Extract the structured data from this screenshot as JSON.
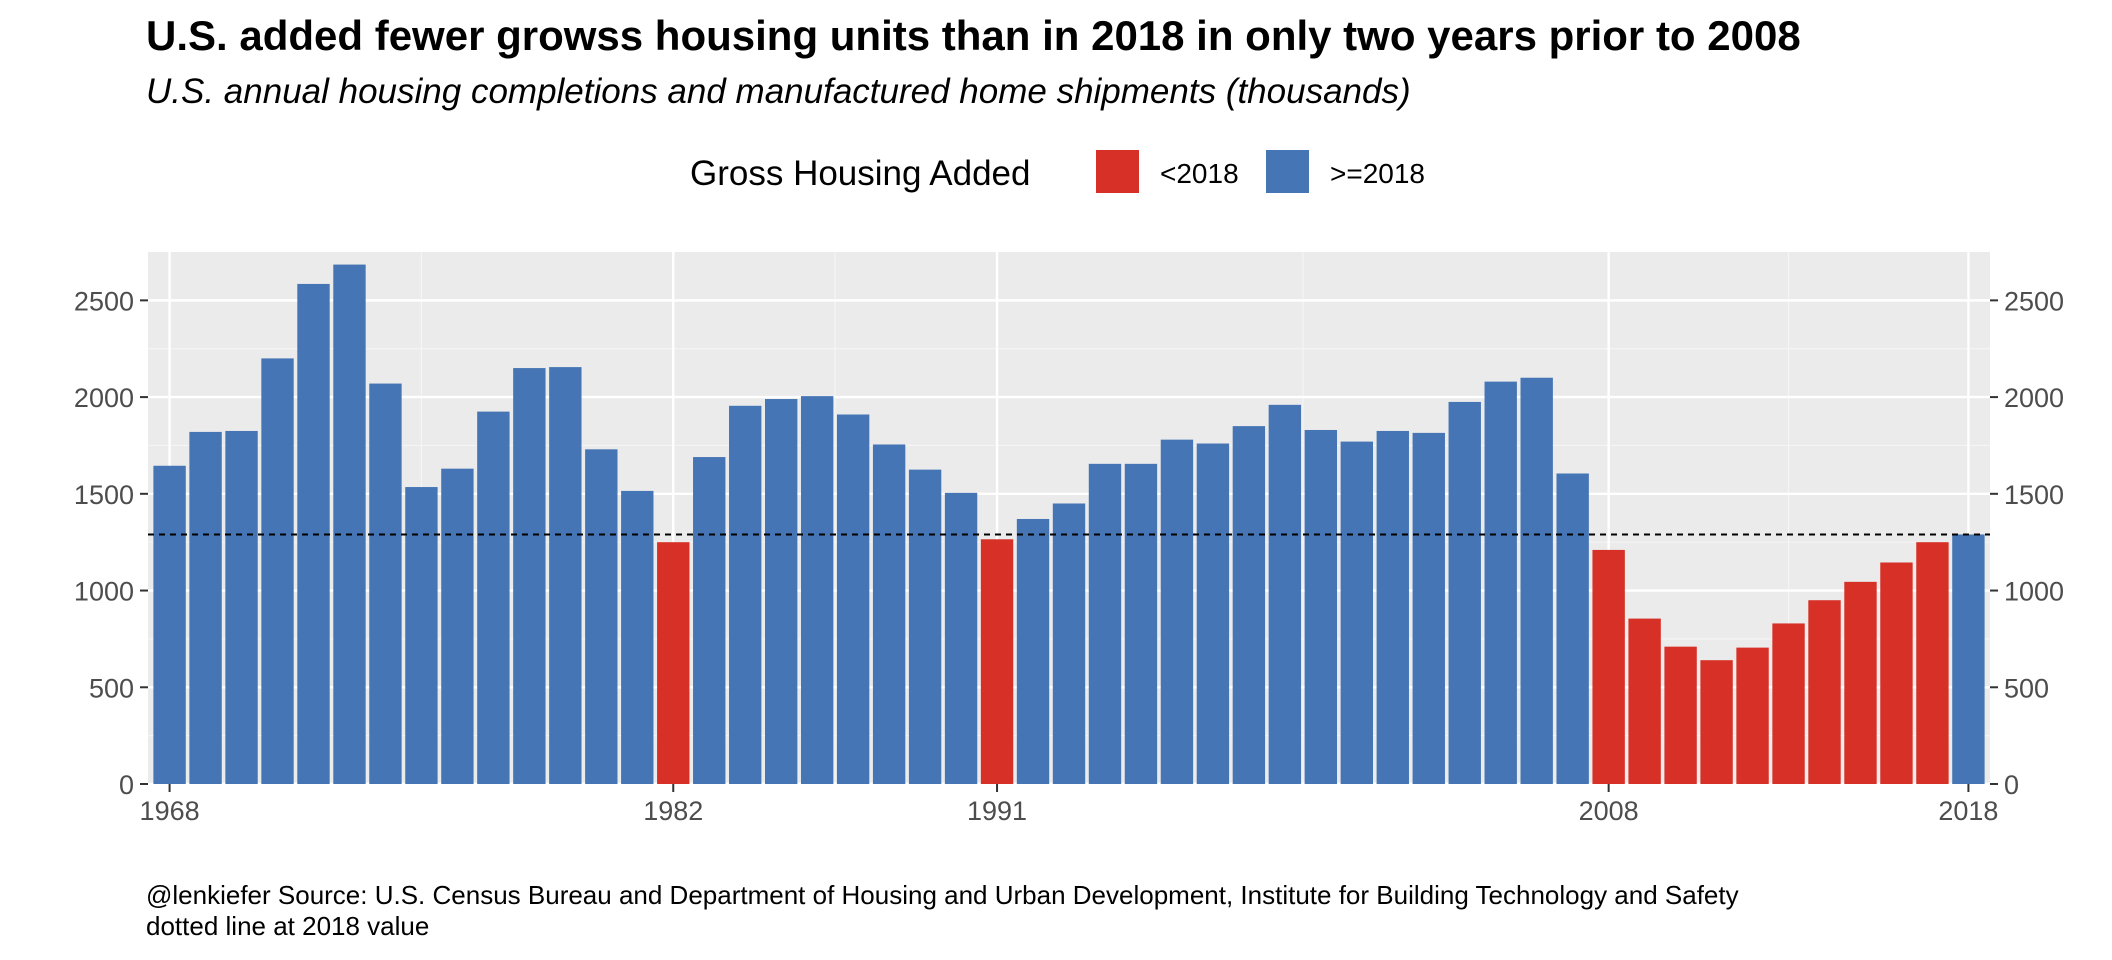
{
  "title": "U.S. added fewer growss housing units than in 2018 in only two years prior to 2008",
  "subtitle": "U.S. annual housing completions and manufactured home shipments (thousands)",
  "legend": {
    "title": "Gross Housing Added",
    "items": [
      {
        "label": "<2018",
        "color": "#D73027"
      },
      {
        "label": ">=2018",
        "color": "#4575B4"
      }
    ]
  },
  "caption": {
    "line1": "@lenkiefer Source: U.S. Census Bureau and Department of Housing and Urban Development, Institute for Building Technology and Safety",
    "line2": "dotted line at 2018 value"
  },
  "chart_data": {
    "type": "bar",
    "x": [
      1968,
      1969,
      1970,
      1971,
      1972,
      1973,
      1974,
      1975,
      1976,
      1977,
      1978,
      1979,
      1980,
      1981,
      1982,
      1983,
      1984,
      1985,
      1986,
      1987,
      1988,
      1989,
      1990,
      1991,
      1992,
      1993,
      1994,
      1995,
      1996,
      1997,
      1998,
      1999,
      2000,
      2001,
      2002,
      2003,
      2004,
      2005,
      2006,
      2007,
      2008,
      2009,
      2010,
      2011,
      2012,
      2013,
      2014,
      2015,
      2016,
      2017,
      2018
    ],
    "values": [
      1645,
      1820,
      1825,
      2200,
      2585,
      2685,
      2070,
      1535,
      1630,
      1925,
      2150,
      2155,
      1730,
      1515,
      1250,
      1690,
      1955,
      1990,
      2005,
      1910,
      1755,
      1625,
      1505,
      1265,
      1370,
      1450,
      1655,
      1655,
      1780,
      1760,
      1850,
      1960,
      1830,
      1770,
      1825,
      1815,
      1975,
      2080,
      2100,
      1605,
      1210,
      855,
      710,
      640,
      705,
      830,
      950,
      1045,
      1145,
      1250,
      1290
    ],
    "categories_colored": [
      "<2018",
      ">=2018"
    ],
    "bar_group": [
      ">=2018",
      ">=2018",
      ">=2018",
      ">=2018",
      ">=2018",
      ">=2018",
      ">=2018",
      ">=2018",
      ">=2018",
      ">=2018",
      ">=2018",
      ">=2018",
      ">=2018",
      ">=2018",
      "<2018",
      ">=2018",
      ">=2018",
      ">=2018",
      ">=2018",
      ">=2018",
      ">=2018",
      ">=2018",
      ">=2018",
      "<2018",
      ">=2018",
      ">=2018",
      ">=2018",
      ">=2018",
      ">=2018",
      ">=2018",
      ">=2018",
      ">=2018",
      ">=2018",
      ">=2018",
      ">=2018",
      ">=2018",
      ">=2018",
      ">=2018",
      ">=2018",
      ">=2018",
      "<2018",
      "<2018",
      "<2018",
      "<2018",
      "<2018",
      "<2018",
      "<2018",
      "<2018",
      "<2018",
      "<2018",
      ">=2018"
    ],
    "x_ticks": [
      1968,
      1982,
      1991,
      2008,
      2018
    ],
    "y_ticks": [
      0,
      500,
      1000,
      1500,
      2000,
      2500
    ],
    "ylim": [
      0,
      2750
    ],
    "xlim": [
      1967.4,
      2018.6
    ],
    "reference_line": {
      "value": 1290,
      "style": "dotted"
    },
    "y_axis_both_sides": true,
    "grid": true,
    "legend_position": "top"
  }
}
